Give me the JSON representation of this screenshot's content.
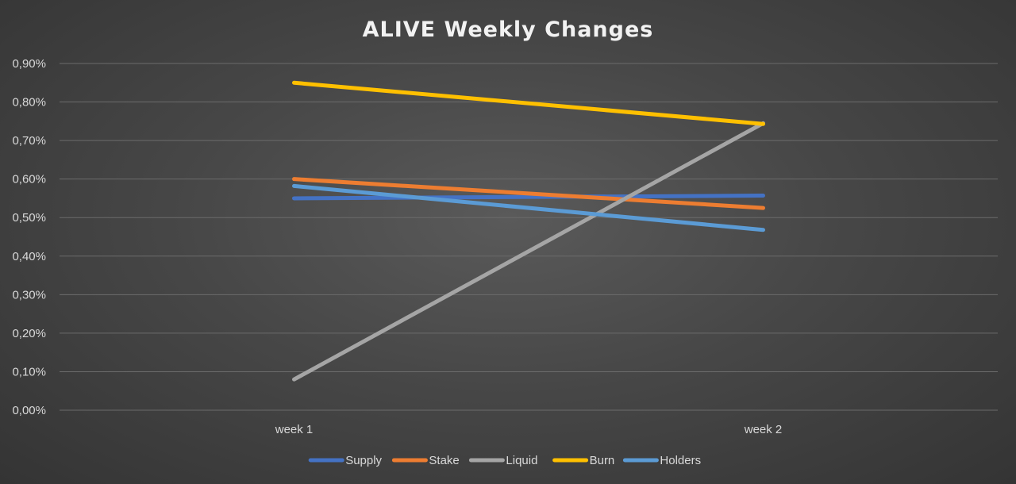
{
  "chart_data": {
    "type": "line",
    "title": "ALIVE Weekly Changes",
    "categories": [
      "week 1",
      "week 2"
    ],
    "y_tick_labels": [
      "0,00%",
      "0,10%",
      "0,20%",
      "0,30%",
      "0,40%",
      "0,50%",
      "0,60%",
      "0,70%",
      "0,80%",
      "0,90%"
    ],
    "ylim": [
      0,
      0.9
    ],
    "y_unit": "%",
    "grid": true,
    "legend_position": "bottom",
    "series": [
      {
        "name": "Supply",
        "values": [
          0.55,
          0.557
        ],
        "color": "#4472C4"
      },
      {
        "name": "Stake",
        "values": [
          0.6,
          0.525
        ],
        "color": "#ED7D31"
      },
      {
        "name": "Liquid",
        "values": [
          0.08,
          0.745
        ],
        "color": "#A5A5A5"
      },
      {
        "name": "Burn",
        "values": [
          0.85,
          0.743
        ],
        "color": "#FFC000"
      },
      {
        "name": "Holders",
        "values": [
          0.582,
          0.468
        ],
        "color": "#5B9BD5"
      }
    ]
  }
}
